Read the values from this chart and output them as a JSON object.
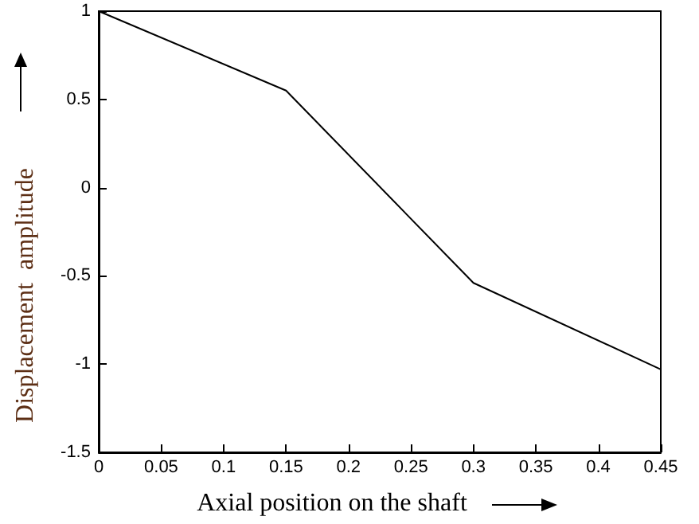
{
  "chart_data": {
    "type": "line",
    "xlabel": "Axial position on the shaft",
    "ylabel": "Displacement  amplitude",
    "x": [
      0,
      0.15,
      0.3,
      0.45
    ],
    "series": [
      {
        "color": "#000000",
        "values": [
          1,
          0.55,
          -0.54,
          -1.03
        ]
      }
    ],
    "xlim": [
      0,
      0.45
    ],
    "xticks": [
      0,
      0.05,
      0.1,
      0.15,
      0.2,
      0.25,
      0.3,
      0.35,
      0.4,
      0.45
    ],
    "ylim": [
      -1.5,
      1
    ],
    "yticks": [
      -1.5,
      -1,
      -0.5,
      0,
      0.5,
      1
    ],
    "grid": false,
    "marker": "none",
    "line_style": "solid"
  }
}
